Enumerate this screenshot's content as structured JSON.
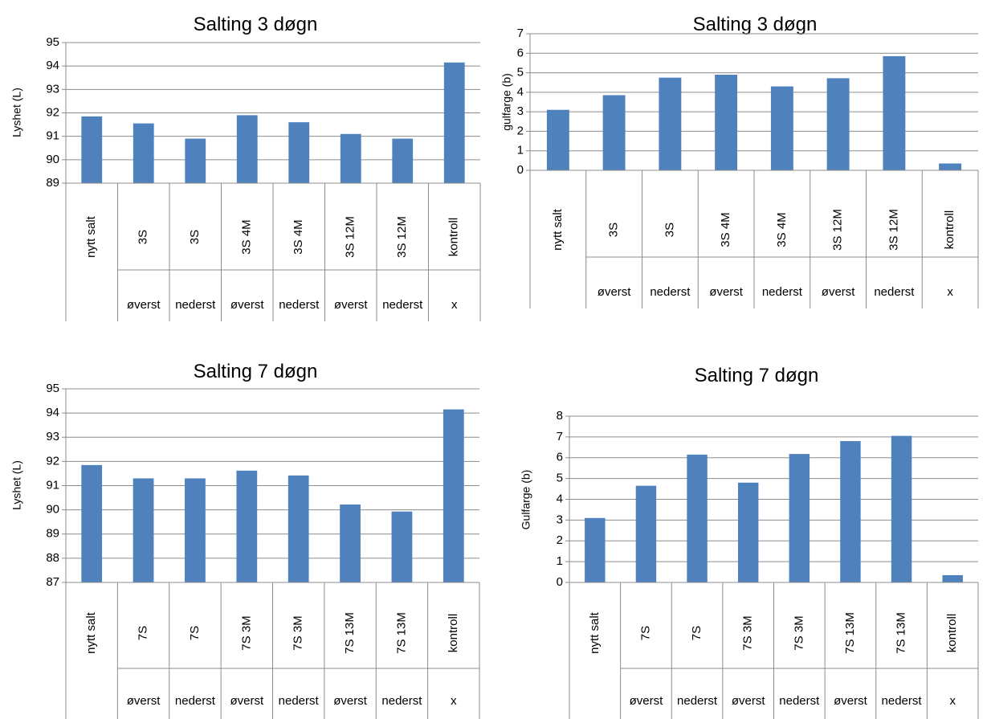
{
  "chart_data": [
    {
      "type": "bar",
      "title": "Salting 3 døgn",
      "xlabel": "",
      "ylabel": "Lyshet (L)",
      "ylim": [
        89,
        95
      ],
      "yticks": [
        89,
        90,
        91,
        92,
        93,
        94,
        95
      ],
      "categories": [
        "nytt salt",
        "3S",
        "3S",
        "3S 4M",
        "3S 4M",
        "3S 12M",
        "3S 12M",
        "kontroll"
      ],
      "group_labels": [
        "",
        "øverst",
        "nederst",
        "øverst",
        "nederst",
        "øverst",
        "nederst",
        "x"
      ],
      "values": [
        91.85,
        91.55,
        90.9,
        91.9,
        91.6,
        91.1,
        90.9,
        94.15
      ],
      "bar_color": "#4F81BD",
      "grid": true,
      "legend": "none"
    },
    {
      "type": "bar",
      "title": "Salting 3 døgn",
      "xlabel": "",
      "ylabel": "gulfarge (b)",
      "ylim": [
        0,
        7
      ],
      "yticks": [
        0,
        1,
        2,
        3,
        4,
        5,
        6,
        7
      ],
      "categories": [
        "nytt salt",
        "3S",
        "3S",
        "3S 4M",
        "3S 4M",
        "3S 12M",
        "3S 12M",
        "kontroll"
      ],
      "group_labels": [
        "",
        "øverst",
        "nederst",
        "øverst",
        "nederst",
        "øverst",
        "nederst",
        "x"
      ],
      "values": [
        3.1,
        3.85,
        4.75,
        4.9,
        4.3,
        4.72,
        5.85,
        0.35
      ],
      "bar_color": "#4F81BD",
      "grid": true,
      "legend": "none"
    },
    {
      "type": "bar",
      "title": "Salting 7 døgn",
      "xlabel": "",
      "ylabel": "Lyshet (L)",
      "ylim": [
        87,
        95
      ],
      "yticks": [
        87,
        88,
        89,
        90,
        91,
        92,
        93,
        94,
        95
      ],
      "categories": [
        "nytt salt",
        "7S",
        "7S",
        "7S 3M",
        "7S 3M",
        "7S 13M",
        "7S 13M",
        "kontroll"
      ],
      "group_labels": [
        "",
        "øverst",
        "nederst",
        "øverst",
        "nederst",
        "øverst",
        "nederst",
        "x"
      ],
      "values": [
        91.85,
        91.3,
        91.3,
        91.62,
        91.42,
        90.22,
        89.93,
        94.15
      ],
      "bar_color": "#4F81BD",
      "grid": true,
      "legend": "none"
    },
    {
      "type": "bar",
      "title": "Salting 7 døgn",
      "xlabel": "",
      "ylabel": "Gulfarge (b)",
      "ylim": [
        0,
        8
      ],
      "yticks": [
        0,
        1,
        2,
        3,
        4,
        5,
        6,
        7,
        8
      ],
      "categories": [
        "nytt salt",
        "7S",
        "7S",
        "7S 3M",
        "7S 3M",
        "7S 13M",
        "7S 13M",
        "kontroll"
      ],
      "group_labels": [
        "",
        "øverst",
        "nederst",
        "øverst",
        "nederst",
        "øverst",
        "nederst",
        "x"
      ],
      "values": [
        3.1,
        4.65,
        6.15,
        4.8,
        6.18,
        6.8,
        7.05,
        0.35
      ],
      "bar_color": "#4F81BD",
      "grid": true,
      "legend": "none"
    }
  ]
}
